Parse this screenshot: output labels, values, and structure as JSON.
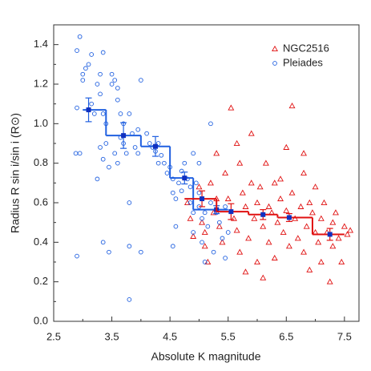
{
  "chart_data": {
    "type": "scatter",
    "x_label": "Absolute K magnitude",
    "y_label": "Radius R sin i/sin i (R⊙)",
    "xlim": [
      2.5,
      7.75
    ],
    "ylim": [
      0,
      1.5
    ],
    "xticks": [
      2.5,
      3.5,
      4.5,
      5.5,
      6.5,
      7.5
    ],
    "xminor": [
      3,
      4,
      5,
      6,
      7
    ],
    "yticks": [
      {
        "value": 0,
        "label": "0.0"
      },
      0.2,
      0.4,
      0.6,
      0.8,
      {
        "value": 1,
        "label": "1.0"
      },
      1.2,
      1.4
    ],
    "yminor": [
      0.1,
      0.3,
      0.5,
      0.7,
      0.9,
      1.1,
      1.3
    ],
    "legend": "upper right",
    "series": [
      {
        "name": "NGC2516",
        "color": "#e01010",
        "marker": "triangle",
        "x": [
          4.8,
          4.85,
          4.9,
          5.0,
          5.05,
          5.1,
          5.1,
          5.15,
          5.2,
          5.25,
          5.3,
          5.35,
          5.4,
          5.45,
          5.5,
          5.55,
          5.6,
          5.65,
          5.7,
          5.7,
          5.75,
          5.8,
          5.85,
          5.9,
          5.9,
          5.95,
          6.0,
          6.0,
          6.05,
          6.1,
          6.15,
          6.2,
          6.2,
          6.25,
          6.3,
          6.3,
          6.35,
          6.4,
          6.45,
          6.5,
          6.5,
          6.55,
          6.6,
          6.6,
          6.65,
          6.7,
          6.75,
          6.8,
          6.8,
          6.85,
          6.9,
          6.9,
          6.95,
          7.0,
          7.0,
          7.05,
          7.1,
          7.1,
          7.15,
          7.2,
          7.25,
          7.3,
          7.3,
          7.35,
          7.4,
          7.45,
          7.5,
          7.55,
          7.6,
          6.1,
          5.8,
          6.4,
          5.3,
          5.65,
          6.8
        ],
        "values": [
          0.6,
          0.52,
          0.43,
          0.68,
          0.5,
          0.45,
          0.38,
          0.3,
          0.7,
          0.55,
          0.62,
          0.48,
          0.4,
          0.75,
          0.62,
          1.08,
          0.52,
          0.46,
          0.8,
          0.35,
          0.65,
          0.58,
          0.42,
          0.95,
          0.7,
          0.52,
          0.6,
          0.3,
          0.68,
          0.48,
          0.8,
          0.58,
          0.4,
          0.55,
          0.7,
          0.32,
          0.5,
          0.62,
          0.45,
          0.88,
          0.56,
          0.38,
          1.09,
          0.65,
          0.52,
          0.42,
          0.58,
          0.75,
          0.35,
          0.48,
          0.6,
          0.26,
          0.55,
          0.45,
          0.68,
          0.4,
          0.52,
          0.3,
          0.6,
          0.45,
          0.2,
          0.5,
          0.38,
          0.55,
          0.42,
          0.3,
          0.48,
          0.44,
          0.46,
          0.22,
          0.25,
          0.72,
          0.85,
          0.9,
          0.85
        ]
      },
      {
        "name": "Pleiades",
        "color": "#2060e0",
        "marker": "circle",
        "x": [
          2.9,
          2.95,
          2.9,
          3.0,
          3.05,
          3.0,
          3.1,
          3.15,
          2.88,
          2.95,
          2.9,
          3.15,
          3.2,
          3.25,
          3.3,
          3.3,
          3.35,
          3.35,
          3.4,
          3.4,
          3.45,
          3.3,
          3.25,
          3.35,
          3.35,
          3.45,
          3.5,
          3.5,
          3.55,
          3.6,
          3.6,
          3.65,
          3.7,
          3.65,
          3.55,
          3.6,
          3.7,
          3.75,
          3.8,
          3.8,
          3.8,
          3.8,
          3.85,
          3.9,
          3.95,
          4.0,
          3.95,
          4.0,
          4.1,
          4.15,
          4.2,
          4.25,
          4.3,
          4.3,
          4.35,
          4.4,
          4.45,
          4.5,
          4.55,
          4.55,
          4.6,
          4.6,
          4.55,
          4.65,
          4.7,
          4.7,
          4.75,
          4.8,
          4.85,
          4.85,
          4.9,
          4.9,
          4.95,
          5.0,
          5.0,
          5.05,
          5.05,
          5.1,
          5.15,
          5.2,
          5.25,
          5.3,
          5.35,
          5.4,
          5.45,
          5.5,
          4.9,
          5.0,
          5.2,
          5.45,
          5.1
        ],
        "values": [
          1.08,
          1.44,
          1.37,
          1.25,
          1.28,
          1.22,
          1.3,
          1.35,
          0.85,
          0.85,
          0.33,
          1.1,
          1.05,
          1.2,
          1.25,
          1.15,
          1.36,
          1.05,
          1.0,
          0.9,
          0.78,
          0.88,
          0.72,
          0.82,
          0.4,
          0.35,
          1.2,
          1.25,
          1.22,
          1.18,
          1.12,
          1.05,
          1.0,
          0.93,
          0.85,
          0.8,
          0.9,
          0.85,
          1.05,
          0.6,
          0.11,
          0.38,
          0.95,
          0.88,
          0.85,
          1.22,
          0.97,
          0.35,
          0.95,
          0.9,
          0.88,
          0.86,
          0.9,
          0.8,
          0.84,
          0.8,
          0.75,
          0.78,
          0.72,
          0.65,
          0.62,
          0.48,
          0.38,
          0.7,
          0.76,
          0.66,
          0.8,
          0.72,
          0.68,
          0.6,
          0.55,
          0.45,
          0.7,
          0.65,
          0.58,
          0.52,
          0.4,
          0.55,
          0.48,
          0.6,
          0.35,
          0.55,
          0.5,
          0.42,
          0.58,
          0.45,
          0.85,
          0.8,
          1.0,
          0.32,
          0.3
        ]
      }
    ],
    "binned": [
      {
        "color": "#2060e0",
        "edges": [
          3.0,
          3.4,
          4.0,
          4.5,
          4.9,
          5.5
        ],
        "values": [
          1.07,
          0.94,
          0.885,
          0.725,
          0.565
        ],
        "mean_x": [
          3.1,
          3.7,
          4.25,
          4.75,
          5.3
        ],
        "mean_values": [
          1.07,
          0.94,
          0.885,
          0.725,
          0.565
        ],
        "errors": [
          0.06,
          0.065,
          0.05,
          0.03,
          0.02
        ]
      },
      {
        "color": "#e01010",
        "edges": [
          4.75,
          5.3,
          5.85,
          6.35,
          6.95,
          7.5
        ],
        "values": [
          0.62,
          0.555,
          0.54,
          0.525,
          0.44
        ],
        "mean_x": [
          5.05,
          5.55,
          6.1,
          6.55,
          7.25
        ],
        "mean_values": [
          0.62,
          0.555,
          0.54,
          0.525,
          0.44
        ],
        "errors": [
          0.04,
          0.04,
          0.025,
          0.02,
          0.03
        ]
      }
    ]
  }
}
